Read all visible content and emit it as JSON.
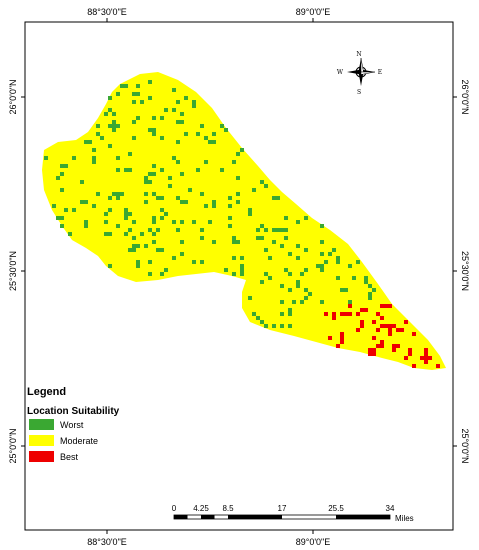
{
  "graticule": {
    "top_labels": [
      "88°30'0\"E",
      "89°0'0\"E"
    ],
    "bottom_labels": [
      "88°30'0\"E",
      "89°0'0\"E"
    ],
    "left_labels": [
      "26°0'0\"N",
      "25°30'0\"N",
      "25°0'0\"N"
    ],
    "right_labels": [
      "26°0'0\"N",
      "25°30'0\"N",
      "25°0'0\"N"
    ]
  },
  "north_arrow": {
    "n": "N",
    "s": "S",
    "e": "E",
    "w": "W"
  },
  "legend": {
    "title": "Legend",
    "subtitle": "Location Suitability",
    "items": [
      {
        "label": "Worst",
        "color": "#3aa832"
      },
      {
        "label": "Moderate",
        "color": "#ffff00"
      },
      {
        "label": "Best",
        "color": "#ee0000"
      }
    ]
  },
  "scale_bar": {
    "ticks": [
      "0",
      "4.25",
      "8.5",
      "17",
      "25.5",
      "34"
    ],
    "unit": "Miles"
  },
  "colors": {
    "moderate": "#ffff00",
    "worst": "#3aa832",
    "best": "#ee0000",
    "frame": "#000000"
  }
}
